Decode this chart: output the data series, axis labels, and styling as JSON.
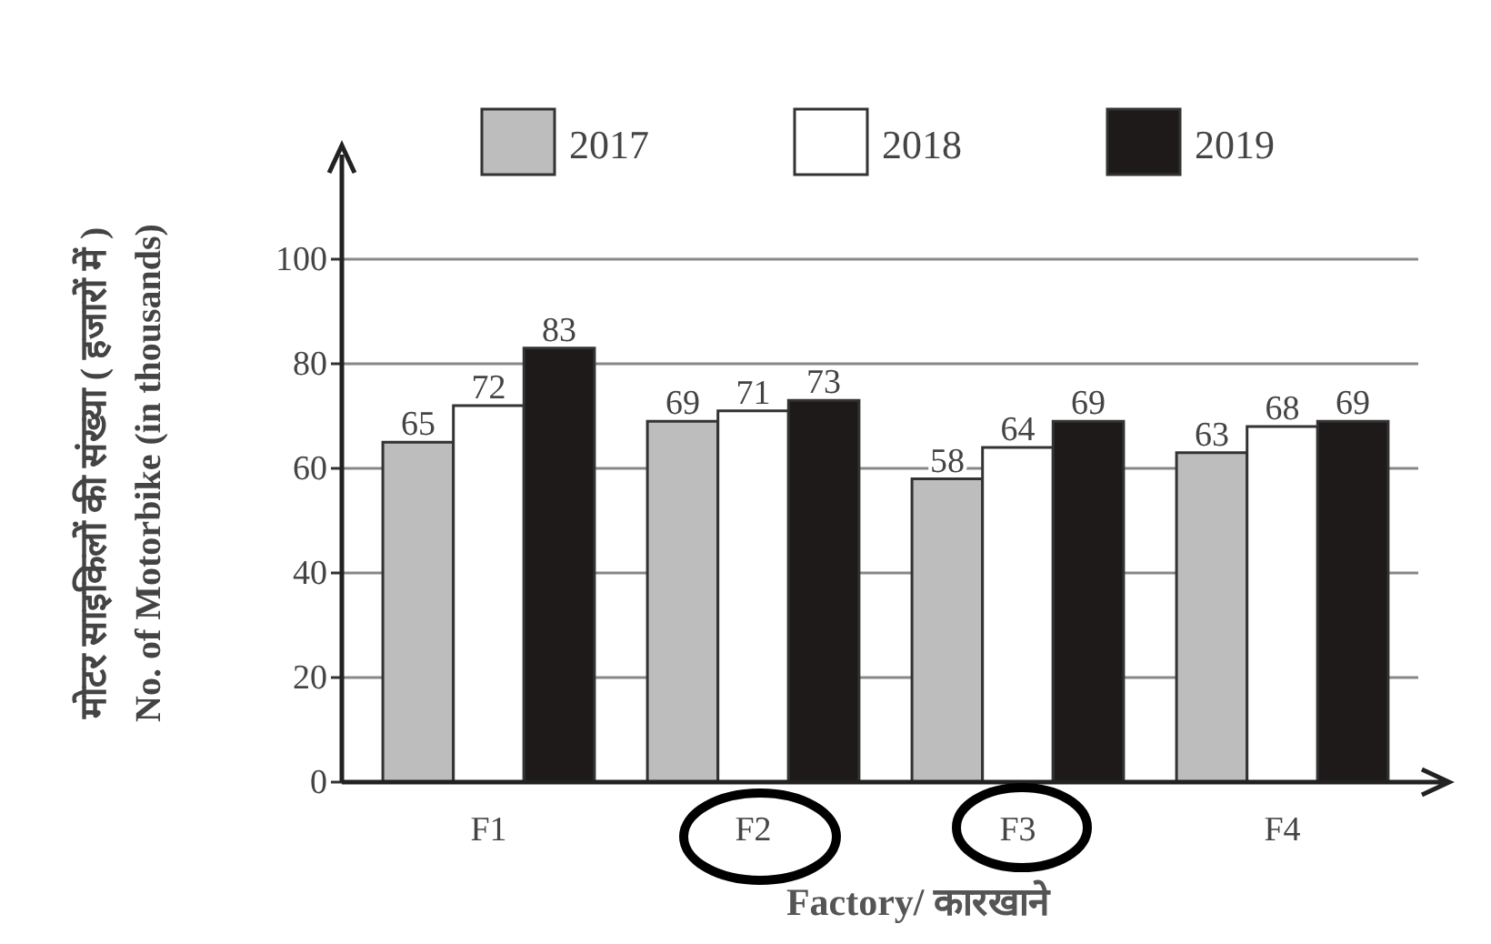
{
  "chart_data": {
    "type": "bar",
    "xlabel": "Factory/ कारखाने",
    "ylabel": "मोटर साइकिलों की संख्या ( हजारों में )\nNo. of Motorbike (in thousands)",
    "categories": [
      "F1",
      "F2",
      "F3",
      "F4"
    ],
    "series": [
      {
        "name": "2017",
        "color": "#bdbdbd",
        "values": [
          65,
          69,
          58,
          63
        ]
      },
      {
        "name": "2018",
        "color": "#ffffff",
        "values": [
          72,
          71,
          64,
          68
        ]
      },
      {
        "name": "2019",
        "color": "#1e1a1a",
        "values": [
          83,
          73,
          69,
          69
        ]
      }
    ],
    "ylim": [
      0,
      120
    ],
    "yticks": [
      0,
      20,
      40,
      60,
      80,
      100
    ],
    "grid": "y",
    "legend": "top",
    "data_labels": true
  }
}
